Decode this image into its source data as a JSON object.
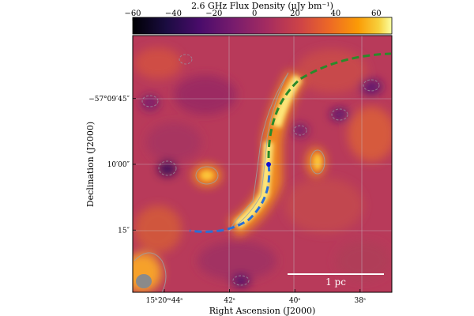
{
  "chart_data": {
    "type": "heatmap",
    "colorbar": {
      "title": "2.6 GHz Flux Density (μJy bm⁻¹)",
      "ticks": [
        "−60",
        "−40",
        "−20",
        "0",
        "20",
        "40",
        "60"
      ],
      "range": [
        -60,
        60
      ],
      "colormap": "inferno"
    },
    "xlabel": "Right Ascension (J2000)",
    "ylabel": "Declination (J2000)",
    "x_ticks": [
      {
        "label": "15ʰ20ᵐ44ˢ",
        "ra_s": 44
      },
      {
        "label": "42ˢ",
        "ra_s": 42
      },
      {
        "label": "40ˢ",
        "ra_s": 40
      },
      {
        "label": "38ˢ",
        "ra_s": 38
      }
    ],
    "y_ticks": [
      {
        "label": "−57°09′45″",
        "dec_offset_arcsec": 15
      },
      {
        "label": "10′00″",
        "dec_offset_arcsec": 0
      },
      {
        "label": "15″",
        "dec_offset_arcsec": -15
      }
    ],
    "grid": true,
    "scale_bar": {
      "label": "1 pc"
    },
    "beam": {
      "shape": "ellipse",
      "color": "#8a8a8a"
    },
    "overlays": [
      {
        "name": "green-arc",
        "color": "#2a8a2a",
        "style": "dashed"
      },
      {
        "name": "blue-arc",
        "color": "#2a6fd6",
        "style": "dashed"
      },
      {
        "name": "pulsar-position",
        "color": "#1010d0"
      }
    ]
  }
}
